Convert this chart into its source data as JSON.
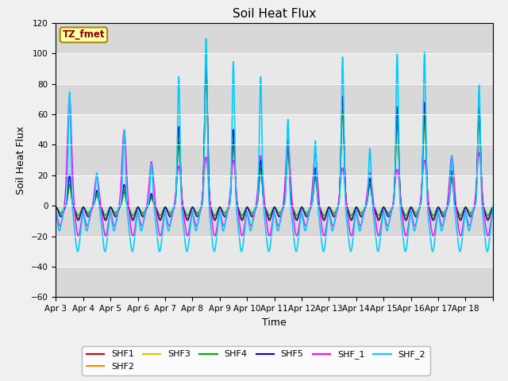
{
  "title": "Soil Heat Flux",
  "xlabel": "Time",
  "ylabel": "Soil Heat Flux",
  "ylim": [
    -60,
    120
  ],
  "yticks": [
    -60,
    -40,
    -20,
    0,
    20,
    40,
    60,
    80,
    100,
    120
  ],
  "xtick_labels": [
    "Apr 3",
    "Apr 4",
    "Apr 5",
    "Apr 6",
    "Apr 7",
    "Apr 8",
    "Apr 9",
    "Apr 10",
    "Apr 11",
    "Apr 12",
    "Apr 13",
    "Apr 14",
    "Apr 15",
    "Apr 16",
    "Apr 17",
    "Apr 18"
  ],
  "series_colors": {
    "SHF1": "#cc0000",
    "SHF2": "#ff8800",
    "SHF3": "#cccc00",
    "SHF4": "#00aa00",
    "SHF5": "#0000cc",
    "SHF_1": "#ff00ff",
    "SHF_2": "#00ccff"
  },
  "legend_label": "TZ_fmet",
  "legend_box_color": "#ffffaa",
  "legend_box_edge": "#aa8800",
  "fig_facecolor": "#f0f0f0",
  "plot_bg_color": "#e8e8e8",
  "band_colors": [
    "#e0e0e0",
    "#d0d0d0"
  ],
  "num_days": 16,
  "points_per_day": 288,
  "shf2_peaks": [
    75,
    22,
    50,
    28,
    85,
    110,
    95,
    85,
    57,
    43,
    98,
    38,
    100,
    101,
    33,
    80
  ],
  "shf5_peaks": [
    20,
    10,
    14,
    8,
    52,
    94,
    50,
    30,
    42,
    25,
    72,
    18,
    65,
    68,
    23,
    65
  ],
  "shf1_peaks": [
    16,
    8,
    10,
    6,
    47,
    90,
    46,
    28,
    40,
    22,
    68,
    16,
    60,
    63,
    20,
    60
  ],
  "shf2o_peaks": [
    17,
    9,
    11,
    7,
    49,
    92,
    48,
    29,
    41,
    23,
    70,
    17,
    62,
    65,
    21,
    62
  ],
  "shf3_peaks": [
    15,
    7,
    9,
    5,
    44,
    87,
    44,
    26,
    38,
    20,
    65,
    15,
    57,
    61,
    19,
    57
  ],
  "shf4_peaks": [
    14,
    7,
    9,
    5,
    42,
    85,
    42,
    25,
    37,
    19,
    63,
    14,
    55,
    59,
    18,
    55
  ],
  "shf1m_peaks": [
    72,
    20,
    50,
    29,
    26,
    32,
    30,
    33,
    44,
    34,
    25,
    22,
    24,
    30,
    33,
    35
  ]
}
